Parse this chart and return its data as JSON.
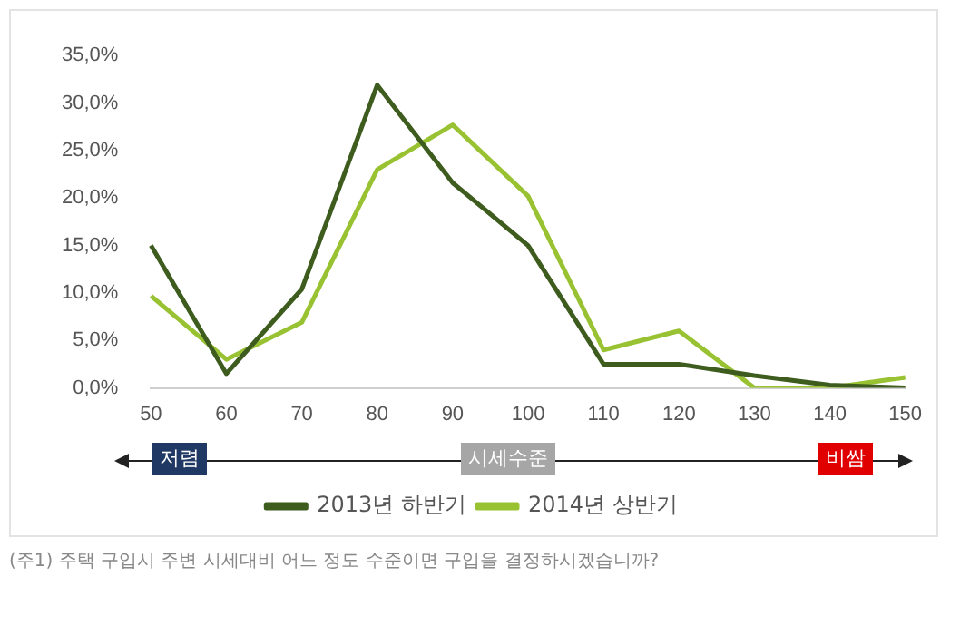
{
  "chart_data": {
    "type": "line",
    "categories": [
      "50",
      "60",
      "70",
      "80",
      "90",
      "100",
      "110",
      "120",
      "130",
      "140",
      "150"
    ],
    "series": [
      {
        "name": "2013년 하반기",
        "color": "#3d5c1e",
        "values": [
          15,
          1.5,
          10.4,
          31.9,
          21.6,
          15,
          2.5,
          2.5,
          1.3,
          0.3,
          0
        ]
      },
      {
        "name": "2014년 상반기",
        "color": "#99c233",
        "values": [
          9.7,
          3,
          6.9,
          23,
          27.7,
          20.2,
          4,
          6,
          0,
          0,
          1.1
        ]
      }
    ],
    "ylim": [
      0,
      35
    ],
    "yticks": [
      {
        "value": 0,
        "label": "0,0%"
      },
      {
        "value": 5,
        "label": "5,0%"
      },
      {
        "value": 10,
        "label": "10,0%"
      },
      {
        "value": 15,
        "label": "15,0%"
      },
      {
        "value": 20,
        "label": "20,0%"
      },
      {
        "value": 25,
        "label": "25,0%"
      },
      {
        "value": 30,
        "label": "30,0%"
      },
      {
        "value": 35,
        "label": "35,0%"
      }
    ],
    "grid": false,
    "legend": "bottom",
    "marker": "none",
    "line_style": "solid",
    "annotations": [
      "저렴",
      "시세수준",
      "비쌈",
      "(주1) 주택 구입시 주변 시세대비 어느 정도 수준이면 구입을 결정하시겠습니까?"
    ]
  }
}
